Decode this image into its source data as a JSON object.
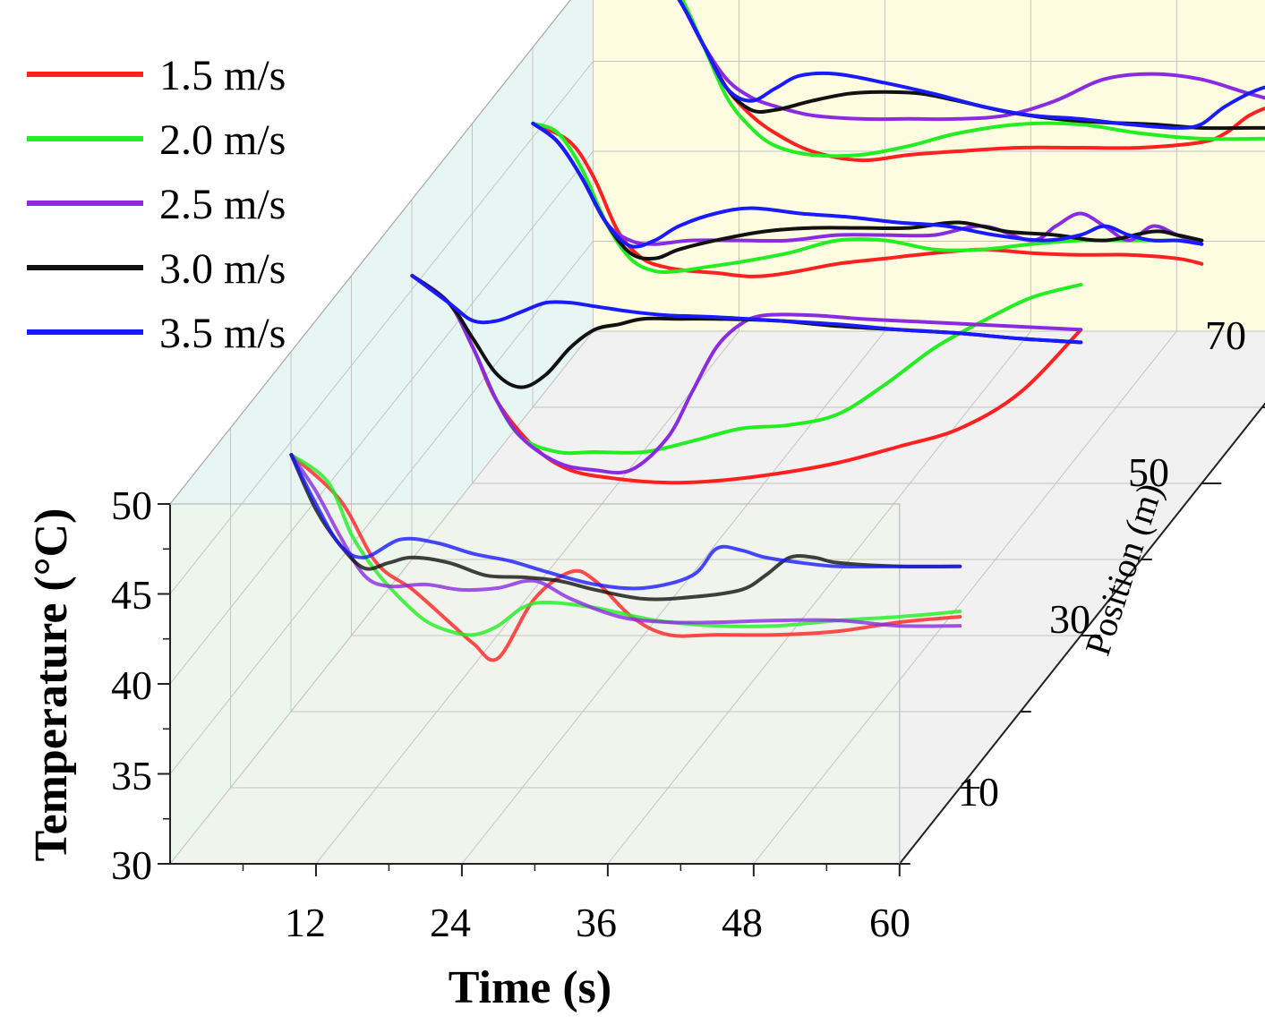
{
  "chart_data": {
    "type": "line",
    "projection": "3d-waterfall",
    "xlabel": "Time (s)",
    "ylabel": "Temperature (°C)",
    "zlabel": "Position (m)",
    "xlim": [
      0,
      60
    ],
    "ylim": [
      30,
      50
    ],
    "zlim": [
      0,
      70
    ],
    "x_ticks": [
      "12",
      "24",
      "36",
      "48",
      "60"
    ],
    "y_ticks": [
      "30",
      "35",
      "40",
      "45",
      "50"
    ],
    "z_ticks": [
      "10",
      "30",
      "50",
      "70"
    ],
    "legend_position": "top-left",
    "colors": {
      "1.5 m/s": "#ff2020",
      "2.0 m/s": "#22ee22",
      "2.5 m/s": "#8a2be2",
      "3.0 m/s": "#111111",
      "3.5 m/s": "#1a1aff"
    },
    "series": [
      {
        "name": "1.5 m/s",
        "position": 10,
        "x": [
          5,
          9,
          12,
          15,
          18,
          20,
          22,
          25,
          28,
          30,
          33,
          36,
          40,
          45,
          50,
          55,
          60
        ],
        "y": [
          48.5,
          46,
          42.5,
          41,
          39.2,
          38,
          37.2,
          40.5,
          42,
          41.5,
          39.5,
          38.5,
          38.5,
          38.5,
          38.7,
          39.2,
          39.5
        ]
      },
      {
        "name": "2.0 m/s",
        "position": 10,
        "x": [
          5,
          8,
          10,
          12,
          14,
          16,
          18,
          20,
          22,
          24,
          26,
          30,
          35,
          40,
          45,
          50,
          55,
          60
        ],
        "y": [
          48.5,
          47,
          44,
          42,
          40.5,
          39.3,
          38.7,
          38.5,
          39,
          40,
          40.3,
          40,
          39.3,
          39,
          39,
          39.3,
          39.5,
          39.8
        ]
      },
      {
        "name": "2.5 m/s",
        "position": 10,
        "x": [
          5,
          7,
          9,
          11,
          13,
          16,
          19,
          22,
          25,
          28,
          32,
          36,
          40,
          45,
          50,
          55,
          60
        ],
        "y": [
          48.5,
          46.5,
          44,
          41.8,
          41.2,
          41.3,
          41,
          41.1,
          41.5,
          40.5,
          39.5,
          39.2,
          39.2,
          39.3,
          39.3,
          39,
          39
        ]
      },
      {
        "name": "3.0 m/s",
        "position": 10,
        "x": [
          5,
          7,
          9,
          11,
          13,
          15,
          18,
          21,
          24,
          27,
          30,
          34,
          38,
          42,
          44,
          46,
          48,
          50,
          55,
          60
        ],
        "y": [
          48.5,
          45.5,
          43.5,
          42.2,
          42.5,
          42.8,
          42.5,
          41.8,
          41.7,
          41.5,
          41,
          40.5,
          40.6,
          41,
          41.8,
          42.8,
          42.8,
          42.5,
          42.3,
          42.3
        ]
      },
      {
        "name": "3.5 m/s",
        "position": 10,
        "x": [
          5,
          7,
          9,
          11,
          14,
          17,
          20,
          23,
          26,
          30,
          34,
          38,
          40,
          42,
          44,
          47,
          50,
          55,
          60
        ],
        "y": [
          48.5,
          45.8,
          43.5,
          42.8,
          43.8,
          43.6,
          43,
          42.6,
          42,
          41.3,
          41.1,
          41.8,
          43.3,
          43.2,
          42.8,
          42.5,
          42.3,
          42.3,
          42.3
        ]
      },
      {
        "name": "1.5 m/s",
        "position": 30,
        "x": [
          5,
          8,
          10,
          12,
          15,
          18,
          22,
          26,
          30,
          35,
          40,
          45,
          50,
          55,
          60
        ],
        "y": [
          50,
          48.5,
          46,
          43,
          40.5,
          39.2,
          38.7,
          38.5,
          38.6,
          39,
          39.6,
          40.5,
          41.5,
          43.5,
          47
        ]
      },
      {
        "name": "2.0 m/s",
        "position": 30,
        "x": [
          5,
          8,
          10,
          12,
          14,
          17,
          20,
          24,
          28,
          32,
          36,
          40,
          44,
          48,
          52,
          56,
          60
        ],
        "y": [
          50,
          48.5,
          46,
          43,
          41,
          40.2,
          40.2,
          40.2,
          40.8,
          41.5,
          41.7,
          42.3,
          44,
          46,
          47.5,
          48.8,
          49.5
        ]
      },
      {
        "name": "2.5 m/s",
        "position": 30,
        "x": [
          5,
          8,
          10,
          12,
          14,
          17,
          20,
          23,
          26,
          28,
          30,
          32,
          34,
          38,
          42,
          48,
          54,
          60
        ],
        "y": [
          50,
          48.5,
          46,
          43,
          41,
          39.6,
          39.2,
          39.2,
          41,
          43.5,
          46,
          47.3,
          47.8,
          47.8,
          47.6,
          47.4,
          47.2,
          47
        ]
      },
      {
        "name": "3.0 m/s",
        "position": 30,
        "x": [
          5,
          8,
          10,
          12,
          14,
          16,
          18,
          20,
          22,
          24,
          27,
          30,
          35,
          40,
          45,
          50,
          55,
          60
        ],
        "y": [
          50,
          48.5,
          46.5,
          44.5,
          43.8,
          44.5,
          46,
          47,
          47.3,
          47.6,
          47.6,
          47.6,
          47.5,
          47.2,
          47,
          46.8,
          46.5,
          46.3
        ]
      },
      {
        "name": "3.5 m/s",
        "position": 30,
        "x": [
          5,
          8,
          10,
          12,
          14,
          16,
          18,
          20,
          23,
          26,
          30,
          35,
          40,
          45,
          50,
          55,
          60
        ],
        "y": [
          50,
          48.5,
          47.5,
          47.5,
          48,
          48.5,
          48.5,
          48.3,
          48,
          47.8,
          47.7,
          47.5,
          47.3,
          47,
          46.8,
          46.5,
          46.3
        ]
      },
      {
        "name": "1.5 m/s",
        "position": 50,
        "x": [
          5,
          8,
          10,
          12,
          14,
          16,
          18,
          20,
          23,
          26,
          30,
          34,
          38,
          42,
          46,
          50,
          54,
          58,
          60
        ],
        "y": [
          50,
          49,
          47,
          44,
          42.5,
          42,
          41.8,
          41.7,
          41.5,
          41.7,
          42.2,
          42.5,
          42.8,
          43,
          42.8,
          42.7,
          42.7,
          42.5,
          42.2
        ]
      },
      {
        "name": "2.0 m/s",
        "position": 50,
        "x": [
          5,
          7,
          9,
          11,
          13,
          15,
          17,
          19,
          22,
          26,
          30,
          34,
          38,
          42,
          46,
          50,
          54,
          58,
          60
        ],
        "y": [
          50,
          49.5,
          47.5,
          44.5,
          42.5,
          41.8,
          41.8,
          42,
          42.3,
          42.8,
          43.5,
          43.5,
          43,
          43,
          43.3,
          43.5,
          43.5,
          43.5,
          43.5
        ]
      },
      {
        "name": "2.5 m/s",
        "position": 50,
        "x": [
          5,
          7,
          9,
          11,
          13,
          15,
          18,
          22,
          26,
          30,
          34,
          38,
          42,
          46,
          48,
          50,
          52,
          54,
          56,
          58,
          60
        ],
        "y": [
          50,
          49,
          47,
          44.5,
          43.5,
          43.3,
          43.5,
          43.5,
          43.5,
          43.8,
          43.8,
          43.8,
          44.3,
          43.5,
          44.3,
          45,
          44.3,
          43.5,
          44.3,
          43.8,
          43.3
        ]
      },
      {
        "name": "3.0 m/s",
        "position": 50,
        "x": [
          5,
          7,
          9,
          11,
          13,
          15,
          17,
          20,
          24,
          28,
          32,
          36,
          40,
          44,
          48,
          52,
          56,
          58,
          60
        ],
        "y": [
          50,
          49,
          47,
          44.5,
          42.8,
          42.5,
          43,
          43.5,
          44,
          44.2,
          44.2,
          44.2,
          44.5,
          44,
          43.8,
          43.5,
          44,
          43.8,
          43.5
        ]
      },
      {
        "name": "3.5 m/s",
        "position": 50,
        "x": [
          5,
          7,
          9,
          11,
          13,
          15,
          17,
          20,
          23,
          27,
          31,
          35,
          39,
          43,
          47,
          50,
          52,
          54,
          56,
          58,
          60
        ],
        "y": [
          50,
          49,
          47,
          44.5,
          43.2,
          43.5,
          44.3,
          45,
          45.3,
          45,
          44.8,
          44.5,
          44.3,
          43.8,
          43.5,
          43.8,
          44.3,
          43.8,
          43.5,
          43.5,
          43.3
        ]
      },
      {
        "name": "1.5 m/s",
        "position": 70,
        "x": [
          5,
          7,
          9,
          11,
          13,
          15,
          18,
          22,
          26,
          30,
          35,
          40,
          45,
          50,
          52,
          54,
          56,
          58,
          60
        ],
        "y": [
          50,
          48.5,
          46,
          43.5,
          42,
          41,
          40,
          39.5,
          39.8,
          40,
          40.2,
          40.2,
          40.2,
          40.5,
          41,
          42,
          42.5,
          42.3,
          41.8
        ]
      },
      {
        "name": "2.0 m/s",
        "position": 70,
        "x": [
          5,
          7,
          9,
          11,
          13,
          15,
          18,
          22,
          26,
          30,
          35,
          40,
          45,
          50,
          55,
          60
        ],
        "y": [
          50,
          48.8,
          46,
          43,
          41.3,
          40.3,
          39.8,
          39.8,
          40.3,
          41,
          41.5,
          41.5,
          41,
          40.7,
          40.7,
          40.7
        ]
      },
      {
        "name": "2.5 m/s",
        "position": 70,
        "x": [
          5,
          7,
          9,
          11,
          13,
          15,
          18,
          22,
          26,
          30,
          34,
          38,
          42,
          46,
          50,
          54,
          58,
          60
        ],
        "y": [
          50,
          48.5,
          46,
          44,
          43,
          42.5,
          42,
          41.8,
          41.8,
          41.8,
          42,
          42.8,
          44,
          44.3,
          44,
          43.2,
          42.5,
          42.3
        ]
      },
      {
        "name": "3.0 m/s",
        "position": 70,
        "x": [
          5,
          7,
          9,
          11,
          13,
          15,
          18,
          21,
          24,
          27,
          30,
          34,
          38,
          42,
          46,
          50,
          54,
          58,
          60
        ],
        "y": [
          50,
          48.5,
          46,
          43.5,
          42.3,
          42.3,
          42.8,
          43.2,
          43.3,
          43.2,
          42.8,
          42.2,
          41.8,
          41.6,
          41.5,
          41.3,
          41.3,
          41.3,
          41.2
        ]
      },
      {
        "name": "3.5 m/s",
        "position": 70,
        "x": [
          5,
          7,
          9,
          11,
          13,
          15,
          17,
          20,
          24,
          28,
          32,
          36,
          40,
          44,
          48,
          50,
          52,
          55,
          58,
          60
        ],
        "y": [
          50,
          48.5,
          46,
          43.5,
          42.8,
          43.5,
          44.2,
          44.3,
          43.8,
          43.2,
          42.5,
          42,
          41.8,
          41.5,
          41.3,
          41.5,
          42.5,
          43.5,
          43.8,
          43.8
        ]
      }
    ]
  }
}
